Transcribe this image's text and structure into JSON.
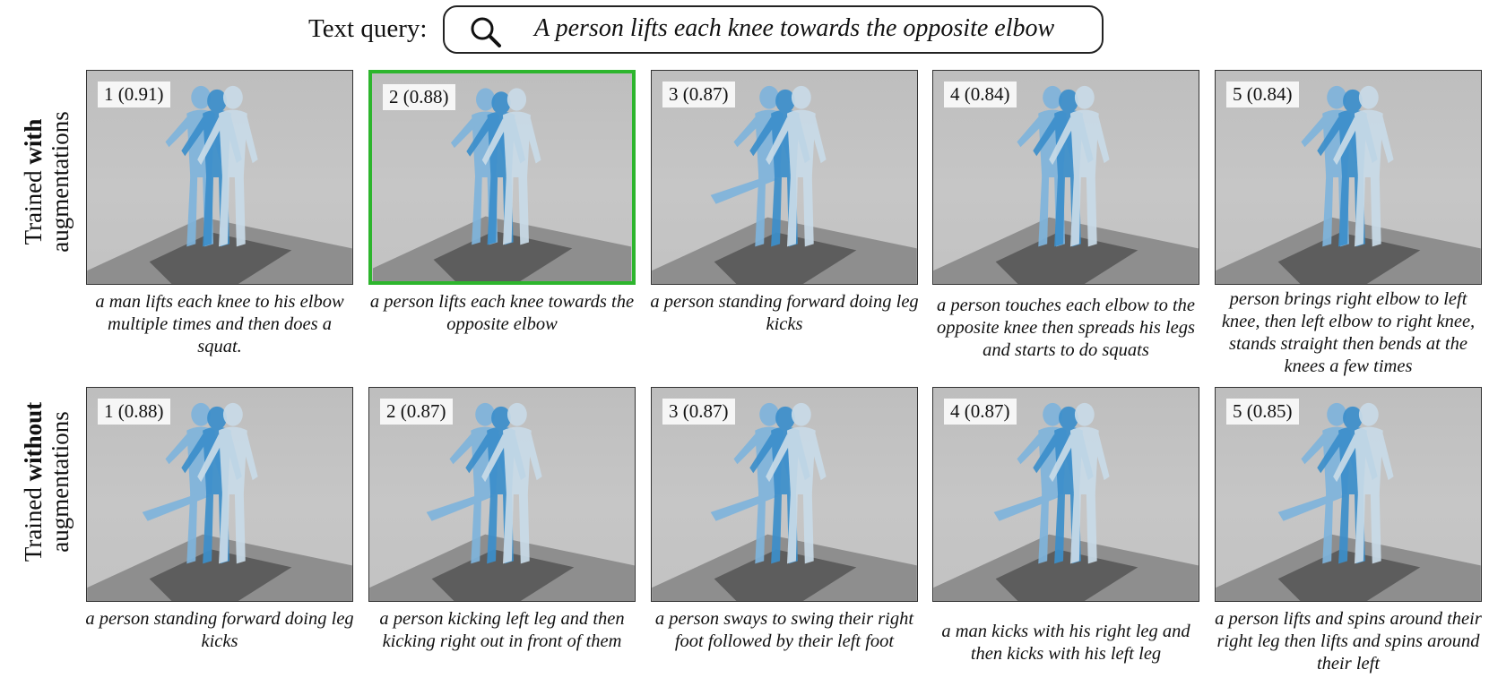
{
  "query": {
    "label": "Text query:",
    "icon": "search-icon",
    "text": "A person lifts each knee towards the opposite elbow"
  },
  "rows": [
    {
      "label_prefix": "Trained ",
      "label_bold": "with",
      "label_suffix": "augmentations",
      "results": [
        {
          "rank": "1 (0.91)",
          "caption": "a man lifts each knee to his elbow multiple times and then does a squat.",
          "selected": false
        },
        {
          "rank": "2 (0.88)",
          "caption": "a person lifts each knee towards the opposite elbow",
          "selected": true
        },
        {
          "rank": "3 (0.87)",
          "caption": "a person standing forward doing leg kicks",
          "selected": false
        },
        {
          "rank": "4 (0.84)",
          "caption": "a person touches each elbow to the opposite knee then spreads his legs and starts to do squats",
          "selected": false
        },
        {
          "rank": "5 (0.84)",
          "caption": "person brings right elbow to left knee, then left elbow to right knee, stands straight then bends at the knees a few times",
          "selected": false
        }
      ]
    },
    {
      "label_prefix": "Trained ",
      "label_bold": "without",
      "label_suffix": "augmentations",
      "results": [
        {
          "rank": "1 (0.88)",
          "caption": "a person standing forward doing leg kicks",
          "selected": false
        },
        {
          "rank": "2 (0.87)",
          "caption": "a person kicking left leg and then kicking right out in front of them",
          "selected": false
        },
        {
          "rank": "3 (0.87)",
          "caption": "a person sways to swing their right foot followed by their left foot",
          "selected": false
        },
        {
          "rank": "4 (0.87)",
          "caption": "a man kicks with his right leg and then kicks with his left leg",
          "selected": false
        },
        {
          "rank": "5 (0.85)",
          "caption": "a person lifts and spins around their right leg then lifts and spins around their left",
          "selected": false
        }
      ]
    }
  ],
  "colors": {
    "selected_border": "#2db52d",
    "figure_dark": "#3c8fcb",
    "figure_light": "#c9dbe8"
  }
}
